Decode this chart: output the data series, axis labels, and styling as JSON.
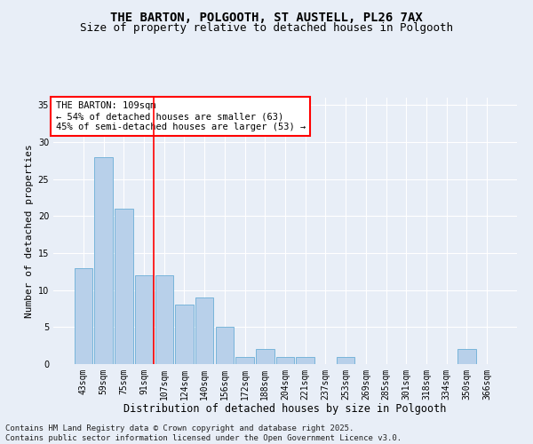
{
  "title": "THE BARTON, POLGOOTH, ST AUSTELL, PL26 7AX",
  "subtitle": "Size of property relative to detached houses in Polgooth",
  "xlabel": "Distribution of detached houses by size in Polgooth",
  "ylabel": "Number of detached properties",
  "categories": [
    "43sqm",
    "59sqm",
    "75sqm",
    "91sqm",
    "107sqm",
    "124sqm",
    "140sqm",
    "156sqm",
    "172sqm",
    "188sqm",
    "204sqm",
    "221sqm",
    "237sqm",
    "253sqm",
    "269sqm",
    "285sqm",
    "301sqm",
    "318sqm",
    "334sqm",
    "350sqm",
    "366sqm"
  ],
  "values": [
    13,
    28,
    21,
    12,
    12,
    8,
    9,
    5,
    1,
    2,
    1,
    1,
    0,
    1,
    0,
    0,
    0,
    0,
    0,
    2,
    0
  ],
  "bar_color": "#b8d0ea",
  "bar_edge_color": "#6aaed6",
  "vline_x": 3.5,
  "vline_color": "red",
  "annotation_text": "THE BARTON: 109sqm\n← 54% of detached houses are smaller (63)\n45% of semi-detached houses are larger (53) →",
  "annotation_box_color": "white",
  "annotation_box_edge_color": "red",
  "ylim": [
    0,
    36
  ],
  "yticks": [
    0,
    5,
    10,
    15,
    20,
    25,
    30,
    35
  ],
  "background_color": "#e8eef7",
  "grid_color": "white",
  "footer": "Contains HM Land Registry data © Crown copyright and database right 2025.\nContains public sector information licensed under the Open Government Licence v3.0.",
  "title_fontsize": 10,
  "subtitle_fontsize": 9,
  "xlabel_fontsize": 8.5,
  "ylabel_fontsize": 8,
  "tick_fontsize": 7,
  "annotation_fontsize": 7.5,
  "footer_fontsize": 6.5
}
